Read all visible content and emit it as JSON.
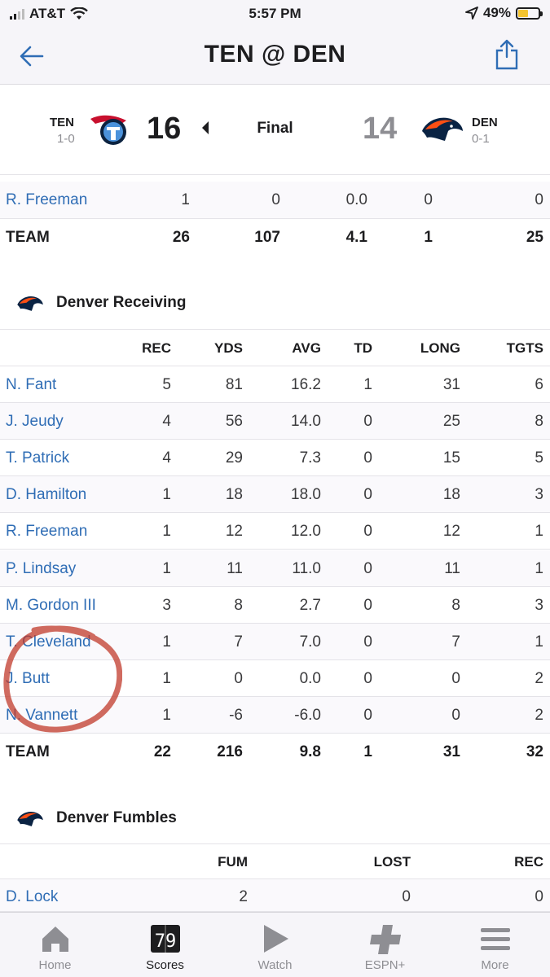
{
  "status_bar": {
    "carrier": "AT&T",
    "time": "5:57 PM",
    "battery": "49%",
    "battery_level": 0.49
  },
  "nav": {
    "title": "TEN @ DEN"
  },
  "scoreboard": {
    "away": {
      "abbr": "TEN",
      "record": "1-0",
      "score": "16"
    },
    "home": {
      "abbr": "DEN",
      "record": "0-1",
      "score": "14"
    },
    "status": "Final"
  },
  "rushing_tail": {
    "rows": [
      {
        "name": "R. Freeman",
        "car": "1",
        "yds": "0",
        "avg": "0.0",
        "td": "0",
        "long": "0"
      }
    ],
    "team": {
      "name": "TEAM",
      "car": "26",
      "yds": "107",
      "avg": "4.1",
      "td": "1",
      "long": "25"
    }
  },
  "receiving": {
    "title": "Denver Receiving",
    "headers": {
      "rec": "REC",
      "yds": "YDS",
      "avg": "AVG",
      "td": "TD",
      "long": "LONG",
      "tgts": "TGTS"
    },
    "rows": [
      {
        "name": "N. Fant",
        "rec": "5",
        "yds": "81",
        "avg": "16.2",
        "td": "1",
        "long": "31",
        "tgts": "6"
      },
      {
        "name": "J. Jeudy",
        "rec": "4",
        "yds": "56",
        "avg": "14.0",
        "td": "0",
        "long": "25",
        "tgts": "8"
      },
      {
        "name": "T. Patrick",
        "rec": "4",
        "yds": "29",
        "avg": "7.3",
        "td": "0",
        "long": "15",
        "tgts": "5"
      },
      {
        "name": "D. Hamilton",
        "rec": "1",
        "yds": "18",
        "avg": "18.0",
        "td": "0",
        "long": "18",
        "tgts": "3"
      },
      {
        "name": "R. Freeman",
        "rec": "1",
        "yds": "12",
        "avg": "12.0",
        "td": "0",
        "long": "12",
        "tgts": "1"
      },
      {
        "name": "P. Lindsay",
        "rec": "1",
        "yds": "11",
        "avg": "11.0",
        "td": "0",
        "long": "11",
        "tgts": "1"
      },
      {
        "name": "M. Gordon III",
        "rec": "3",
        "yds": "8",
        "avg": "2.7",
        "td": "0",
        "long": "8",
        "tgts": "3"
      },
      {
        "name": "T. Cleveland",
        "rec": "1",
        "yds": "7",
        "avg": "7.0",
        "td": "0",
        "long": "7",
        "tgts": "1"
      },
      {
        "name": "J. Butt",
        "rec": "1",
        "yds": "0",
        "avg": "0.0",
        "td": "0",
        "long": "0",
        "tgts": "2"
      },
      {
        "name": "N. Vannett",
        "rec": "1",
        "yds": "-6",
        "avg": "-6.0",
        "td": "0",
        "long": "0",
        "tgts": "2"
      }
    ],
    "team": {
      "name": "TEAM",
      "rec": "22",
      "yds": "216",
      "avg": "9.8",
      "td": "1",
      "long": "31",
      "tgts": "32"
    }
  },
  "fumbles": {
    "title": "Denver Fumbles",
    "headers": {
      "fum": "FUM",
      "lost": "LOST",
      "rec": "REC"
    },
    "rows": [
      {
        "name": "D. Lock",
        "fum": "2",
        "lost": "0",
        "rec": "0"
      }
    ]
  },
  "tabbar": {
    "items": [
      {
        "label": "Home",
        "icon": "home-icon"
      },
      {
        "label": "Scores",
        "icon": "scores-icon"
      },
      {
        "label": "Watch",
        "icon": "watch-icon"
      },
      {
        "label": "ESPN+",
        "icon": "espn-plus-icon"
      },
      {
        "label": "More",
        "icon": "more-icon"
      }
    ],
    "active": "Scores"
  },
  "colors": {
    "link": "#2f6db5",
    "annotation": "#c0392b",
    "titans_navy": "#0c2340",
    "titans_blue": "#4b92db",
    "broncos_orange": "#fb4f14"
  }
}
